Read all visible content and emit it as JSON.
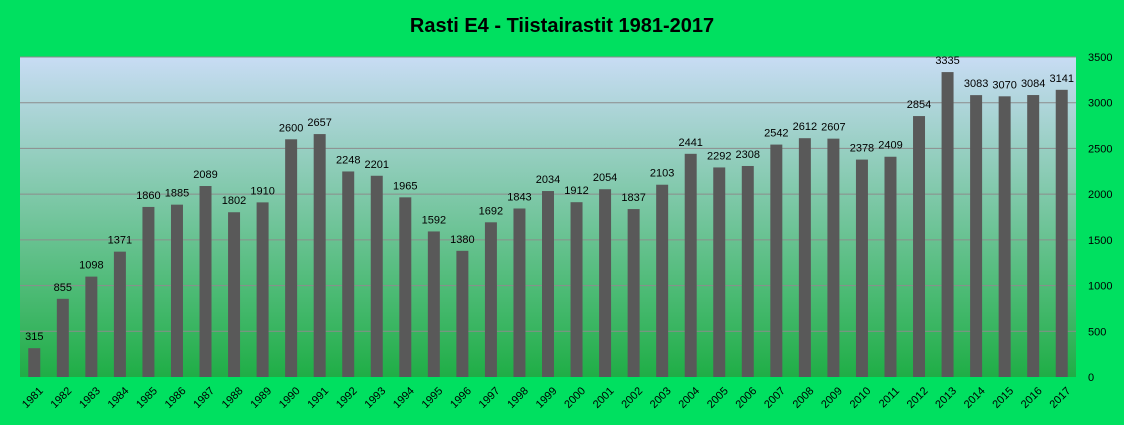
{
  "chart_data": {
    "type": "bar",
    "title": "Rasti E4 - Tiistairastit 1981-2017",
    "xlabel": "",
    "ylabel": "",
    "categories": [
      "1981",
      "1982",
      "1983",
      "1984",
      "1985",
      "1986",
      "1987",
      "1988",
      "1989",
      "1990",
      "1991",
      "1992",
      "1993",
      "1994",
      "1995",
      "1996",
      "1997",
      "1998",
      "1999",
      "2000",
      "2001",
      "2002",
      "2003",
      "2004",
      "2005",
      "2006",
      "2007",
      "2008",
      "2009",
      "2010",
      "2011",
      "2012",
      "2013",
      "2014",
      "2015",
      "2016",
      "2017"
    ],
    "values": [
      315,
      855,
      1098,
      1371,
      1860,
      1885,
      2089,
      1802,
      1910,
      2600,
      2657,
      2248,
      2201,
      1965,
      1592,
      1380,
      1692,
      1843,
      2034,
      1912,
      2054,
      1837,
      2103,
      2441,
      2292,
      2308,
      2542,
      2612,
      2607,
      2378,
      2409,
      2854,
      3335,
      3083,
      3070,
      3084,
      3141
    ],
    "ylim": [
      0,
      3500
    ],
    "yticks": [
      "0",
      "500",
      "1000",
      "1500",
      "2000",
      "2500",
      "3000",
      "3500"
    ],
    "y_axis_side": "right",
    "grid": true,
    "legend": "none",
    "colors": {
      "page_background": "#00e060",
      "plot_top": "#c8dcf4",
      "plot_bottom": "#1fae46",
      "bar": "#595959",
      "grid": "#8c8c8c"
    }
  }
}
